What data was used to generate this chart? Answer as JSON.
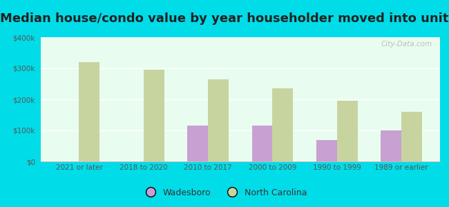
{
  "title": "Median house/condo value by year householder moved into unit",
  "categories": [
    "2021 or later",
    "2018 to 2020",
    "2010 to 2017",
    "2000 to 2009",
    "1990 to 1999",
    "1989 or earlier"
  ],
  "wadesboro": [
    0,
    0,
    115000,
    115000,
    70000,
    100000
  ],
  "north_carolina": [
    320000,
    295000,
    265000,
    235000,
    195000,
    160000
  ],
  "wadesboro_color": "#c8a0d2",
  "nc_color": "#c8d4a0",
  "chart_bg_top": "#e8fdf0",
  "chart_bg_bottom": "#d8f5e8",
  "outer_background": "#00dce8",
  "ylim": [
    0,
    400000
  ],
  "yticks": [
    0,
    100000,
    200000,
    300000,
    400000
  ],
  "title_fontsize": 13,
  "legend_labels": [
    "Wadesboro",
    "North Carolina"
  ],
  "watermark": "City-Data.com"
}
